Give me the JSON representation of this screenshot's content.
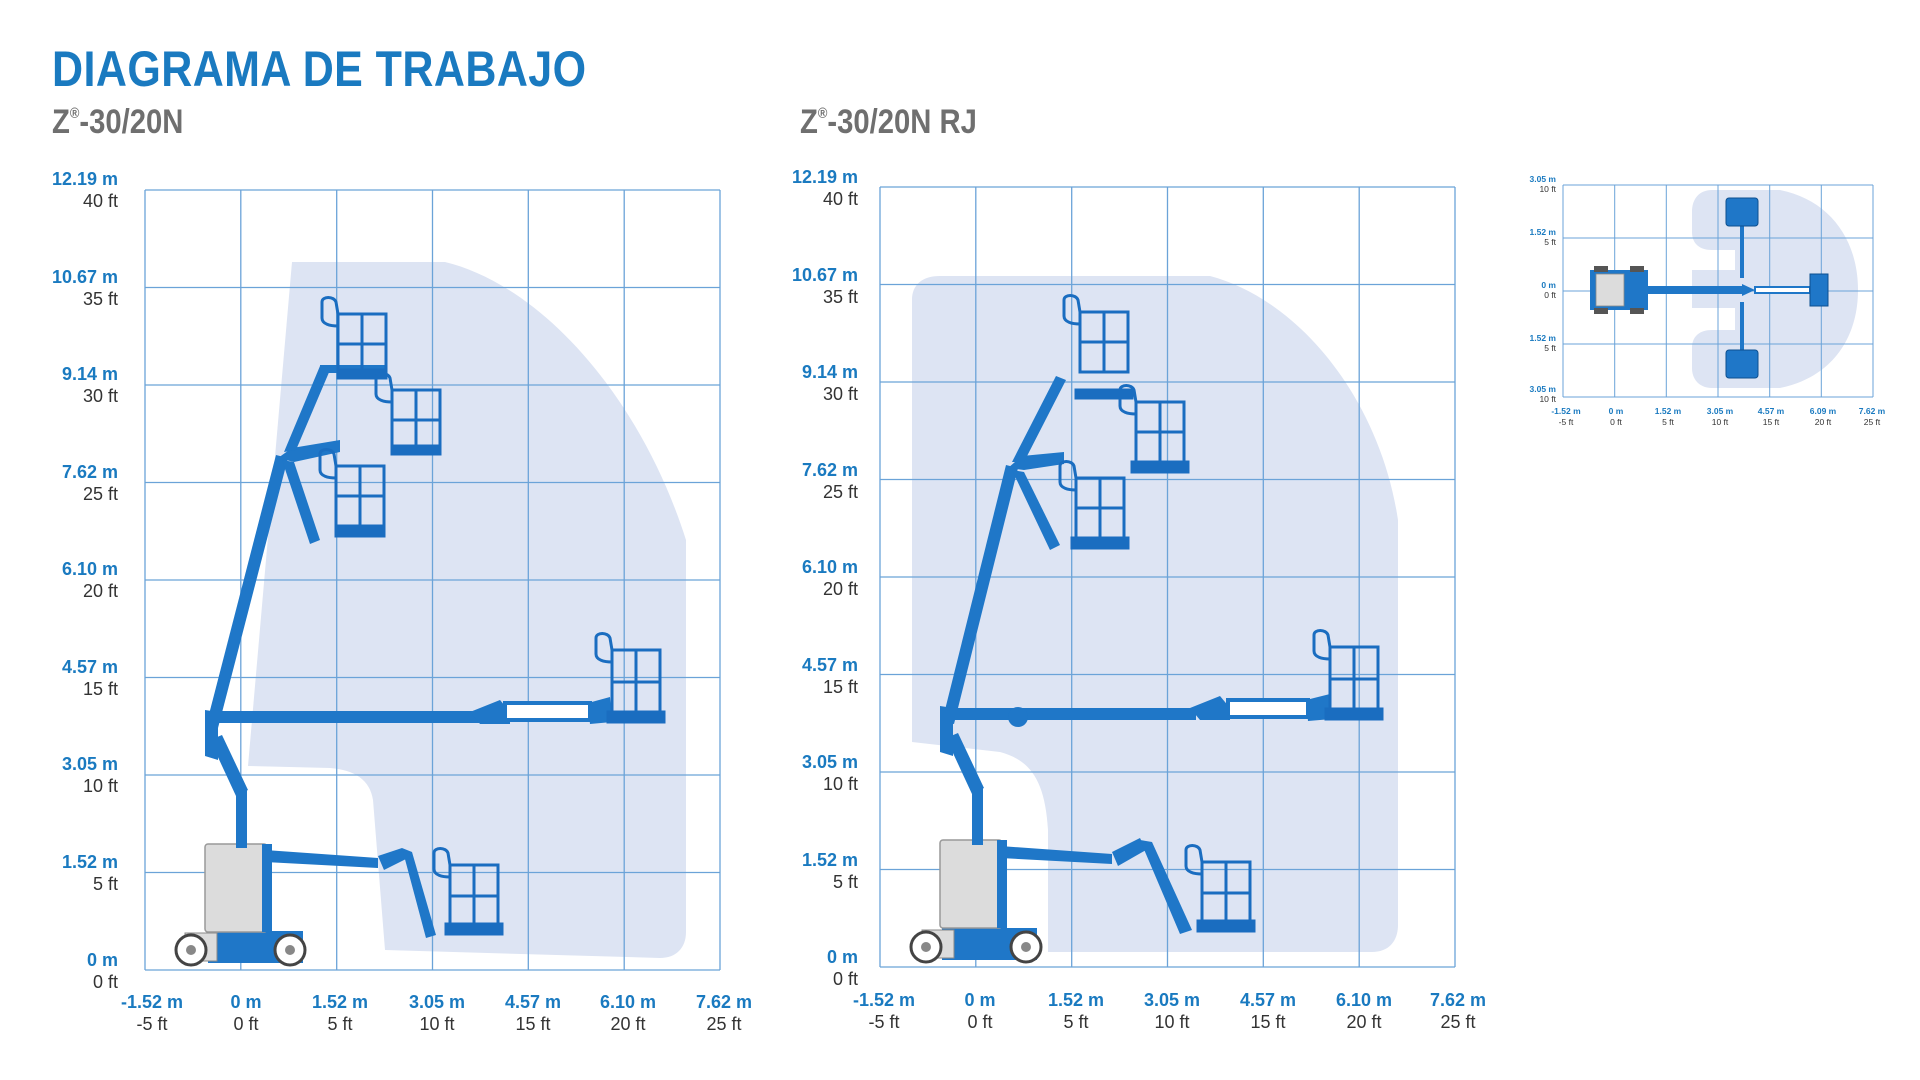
{
  "heading": "DIAGRAMA DE TRABAJO",
  "diagrams": [
    {
      "model_prefix": "Z",
      "reg_mark": "®",
      "model_suffix": "-30/20N",
      "y_ticks": [
        {
          "m": "12.19 m",
          "ft": "40 ft"
        },
        {
          "m": "10.67 m",
          "ft": "35 ft"
        },
        {
          "m": "9.14 m",
          "ft": "30 ft"
        },
        {
          "m": "7.62 m",
          "ft": "25 ft"
        },
        {
          "m": "6.10 m",
          "ft": "20 ft"
        },
        {
          "m": "4.57 m",
          "ft": "15 ft"
        },
        {
          "m": "3.05 m",
          "ft": "10 ft"
        },
        {
          "m": "1.52 m",
          "ft": "5 ft"
        },
        {
          "m": "0 m",
          "ft": "0 ft"
        }
      ],
      "x_ticks": [
        {
          "m": "-1.52 m",
          "ft": "-5 ft"
        },
        {
          "m": "0 m",
          "ft": "0 ft"
        },
        {
          "m": "1.52 m",
          "ft": "5 ft"
        },
        {
          "m": "3.05 m",
          "ft": "10 ft"
        },
        {
          "m": "4.57 m",
          "ft": "15 ft"
        },
        {
          "m": "6.10 m",
          "ft": "20 ft"
        },
        {
          "m": "7.62 m",
          "ft": "25 ft"
        }
      ]
    },
    {
      "model_prefix": "Z",
      "reg_mark": "®",
      "model_suffix": "-30/20N RJ",
      "y_ticks": [
        {
          "m": "12.19 m",
          "ft": "40 ft"
        },
        {
          "m": "10.67 m",
          "ft": "35 ft"
        },
        {
          "m": "9.14 m",
          "ft": "30 ft"
        },
        {
          "m": "7.62 m",
          "ft": "25 ft"
        },
        {
          "m": "6.10 m",
          "ft": "20 ft"
        },
        {
          "m": "4.57 m",
          "ft": "15 ft"
        },
        {
          "m": "3.05 m",
          "ft": "10 ft"
        },
        {
          "m": "1.52 m",
          "ft": "5 ft"
        },
        {
          "m": "0 m",
          "ft": "0 ft"
        }
      ],
      "x_ticks": [
        {
          "m": "-1.52 m",
          "ft": "-5 ft"
        },
        {
          "m": "0 m",
          "ft": "0 ft"
        },
        {
          "m": "1.52 m",
          "ft": "5 ft"
        },
        {
          "m": "3.05 m",
          "ft": "10 ft"
        },
        {
          "m": "4.57 m",
          "ft": "15 ft"
        },
        {
          "m": "6.10 m",
          "ft": "20 ft"
        },
        {
          "m": "7.62 m",
          "ft": "25 ft"
        }
      ]
    }
  ],
  "top_view": {
    "y_ticks": [
      {
        "m": "3.05 m",
        "ft": "10 ft"
      },
      {
        "m": "1.52 m",
        "ft": "5 ft"
      },
      {
        "m": "0 m",
        "ft": "0 ft"
      },
      {
        "m": "1.52 m",
        "ft": "5 ft"
      },
      {
        "m": "3.05 m",
        "ft": "10 ft"
      }
    ],
    "x_ticks": [
      {
        "m": "-1.52 m",
        "ft": "-5 ft"
      },
      {
        "m": "0 m",
        "ft": "0 ft"
      },
      {
        "m": "1.52 m",
        "ft": "5 ft"
      },
      {
        "m": "3.05 m",
        "ft": "10 ft"
      },
      {
        "m": "4.57 m",
        "ft": "15 ft"
      },
      {
        "m": "6.09 m",
        "ft": "20 ft"
      },
      {
        "m": "7.62 m",
        "ft": "25 ft"
      }
    ]
  },
  "colors": {
    "heading": "#1a7ac0",
    "grid": "#5b9bd5",
    "envelope": "#dde4f3",
    "machine": "#1f77c8",
    "platform": "#1a6dc0",
    "chassis": "#dcdcdc"
  }
}
